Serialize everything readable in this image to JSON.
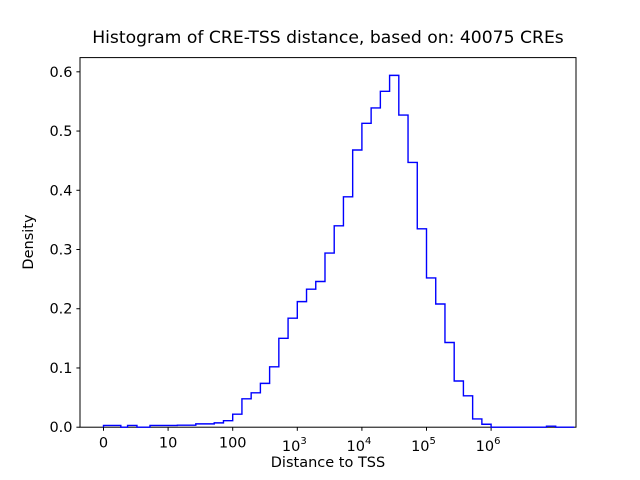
{
  "figure": {
    "background": "#ffffff"
  },
  "chart_data": {
    "type": "histogram-step",
    "title": "Histogram of CRE-TSS distance, based on: 40075 CREs",
    "xlabel": "Distance to TSS",
    "ylabel": "Density",
    "n_cres": 40075,
    "x_scale": "symlog",
    "grid": false,
    "legend": false,
    "line_color": "#0000ff",
    "axis_color": "#000000",
    "ylim": [
      0,
      0.624
    ],
    "y_ticks": [
      {
        "value": 0.0,
        "label": "0.0"
      },
      {
        "value": 0.1,
        "label": "0.1"
      },
      {
        "value": 0.2,
        "label": "0.2"
      },
      {
        "value": 0.3,
        "label": "0.3"
      },
      {
        "value": 0.4,
        "label": "0.4"
      },
      {
        "value": 0.5,
        "label": "0.5"
      },
      {
        "value": 0.6,
        "label": "0.6"
      }
    ],
    "x_ticks": [
      {
        "value": 0,
        "label": "0"
      },
      {
        "value": 10,
        "label": "10"
      },
      {
        "value": 100,
        "label": "100"
      },
      {
        "value": 1000,
        "label": "10^3"
      },
      {
        "value": 10000,
        "label": "10^4"
      },
      {
        "value": 100000,
        "label": "10^5"
      },
      {
        "value": 1000000,
        "label": "10^6"
      }
    ],
    "bins": {
      "note": "log-spaced bin edges, 7 bins per decade; first edge is 0, then 10^(i/7) for i=1..51",
      "per_decade": 7,
      "first_edge": 0,
      "log10_last_edge": 7.2857
    },
    "densities": [
      0.003,
      0.003,
      0.003,
      0,
      0.003,
      0,
      0.003,
      0.003,
      0.0034,
      0.0034,
      0.0056,
      0.0056,
      0.0073,
      0.011,
      0.022,
      0.048,
      0.058,
      0.074,
      0.102,
      0.15,
      0.184,
      0.212,
      0.233,
      0.246,
      0.294,
      0.34,
      0.389,
      0.468,
      0.513,
      0.539,
      0.567,
      0.594,
      0.527,
      0.447,
      0.335,
      0.252,
      0.208,
      0.143,
      0.078,
      0.053,
      0.014,
      0.005,
      0,
      0,
      0,
      0,
      0,
      0,
      0.0017,
      0,
      0
    ]
  }
}
